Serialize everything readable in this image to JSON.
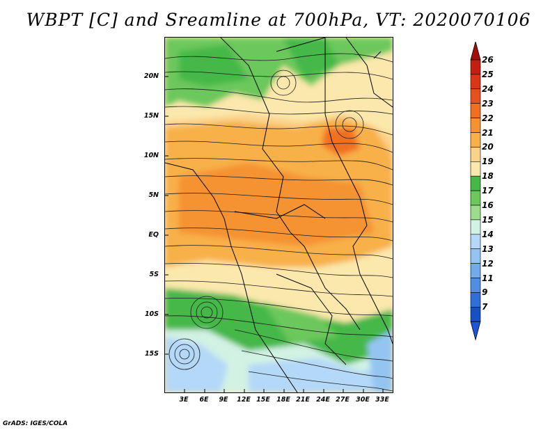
{
  "title": "WBPT [C] and Sreamline at 700hPa, VT: 2020070106",
  "credit": "GrADS: IGES/COLA",
  "lat_labels": [
    "20N",
    "15N",
    "10N",
    "5N",
    "EQ",
    "5S",
    "10S",
    "15S"
  ],
  "lon_labels": [
    "3E",
    "6E",
    "9E",
    "12E",
    "15E",
    "18E",
    "21E",
    "24E",
    "27E",
    "30E",
    "33E"
  ],
  "colorbar": {
    "labels": [
      "26",
      "25",
      "24",
      "23",
      "22",
      "21",
      "20",
      "19",
      "18",
      "17",
      "16",
      "15",
      "14",
      "13",
      "12",
      "11",
      "9",
      "7"
    ],
    "colors": [
      "#c41e10",
      "#d93618",
      "#e8501e",
      "#f07022",
      "#f59232",
      "#f8b048",
      "#fbd28a",
      "#fbe8ac",
      "#45b848",
      "#6cc85c",
      "#9cdc8c",
      "#d2f2e4",
      "#b4d8f8",
      "#94c4f2",
      "#72aaea",
      "#4f8ee2",
      "#2f70d6",
      "#1750c4"
    ],
    "arrow_top": "#a30e0a",
    "arrow_bottom": "#1c56d8"
  }
}
